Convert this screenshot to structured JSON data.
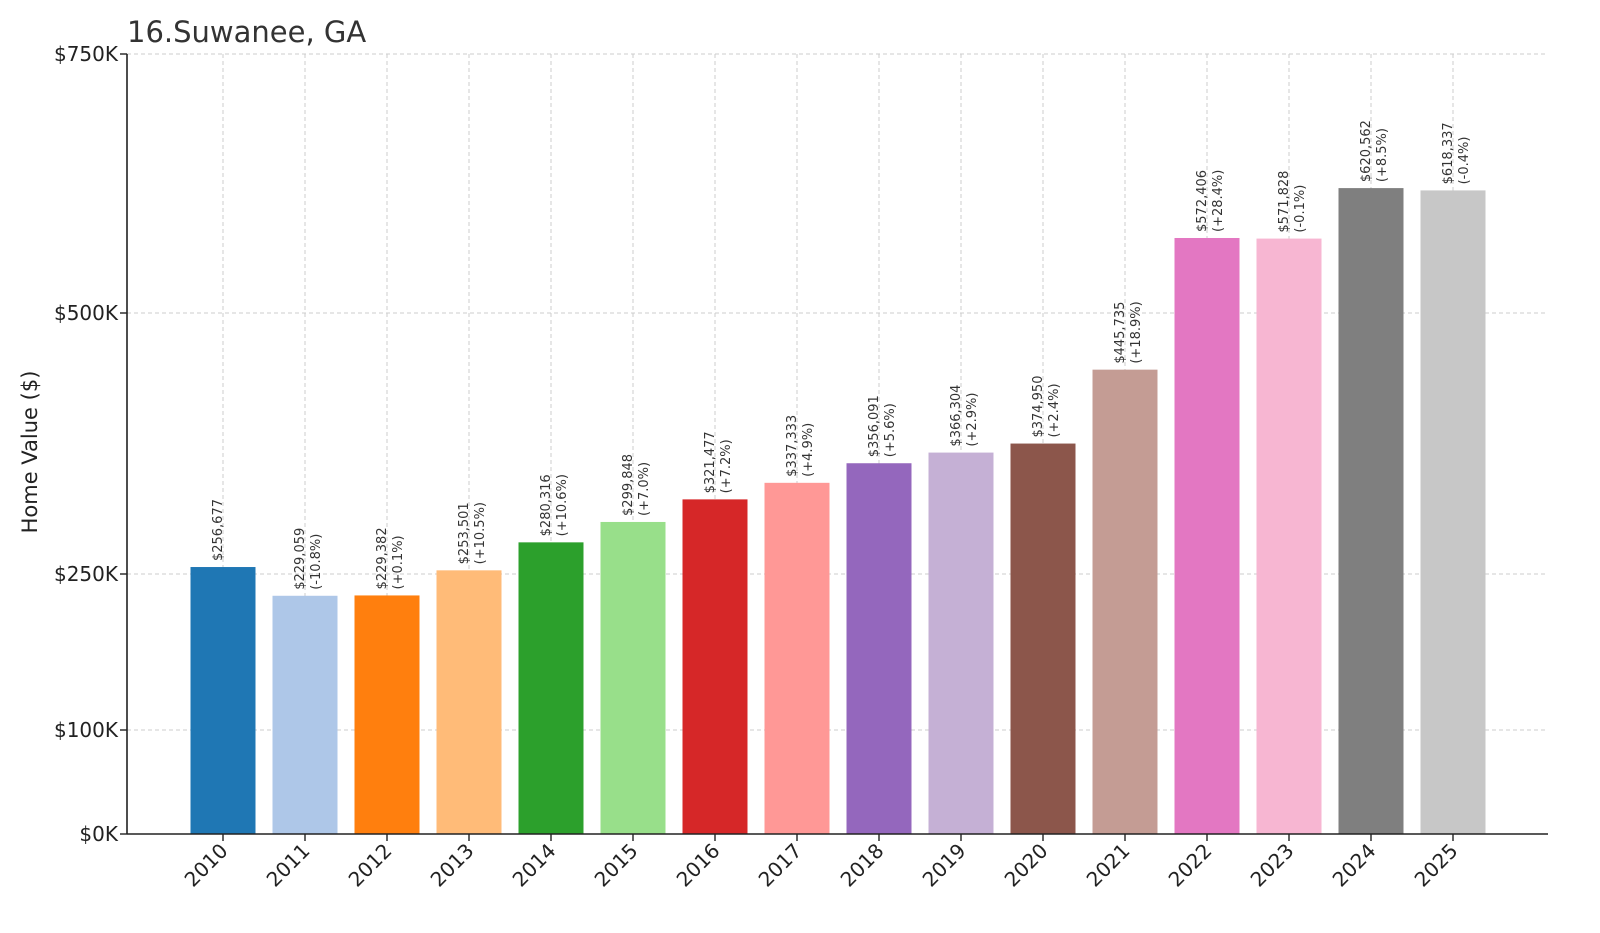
{
  "chart_data": {
    "type": "bar",
    "title": "16.Suwanee, GA",
    "xlabel": "",
    "ylabel": "Home Value ($)",
    "ylim": [
      0,
      750000
    ],
    "yticks": [
      {
        "value": 0,
        "label": "$0K"
      },
      {
        "value": 100000,
        "label": "$100K"
      },
      {
        "value": 250000,
        "label": "$250K"
      },
      {
        "value": 500000,
        "label": "$500K"
      },
      {
        "value": 750000,
        "label": "$750K"
      }
    ],
    "grid": true,
    "categories": [
      "2010",
      "2011",
      "2012",
      "2013",
      "2014",
      "2015",
      "2016",
      "2017",
      "2018",
      "2019",
      "2020",
      "2021",
      "2022",
      "2023",
      "2024",
      "2025"
    ],
    "values": [
      256677,
      229059,
      229382,
      253501,
      280316,
      299848,
      321477,
      337333,
      356091,
      366304,
      374950,
      445735,
      572406,
      571828,
      620562,
      618337
    ],
    "value_labels": [
      "$256,677",
      "$229,059",
      "$229,382",
      "$253,501",
      "$280,316",
      "$299,848",
      "$321,477",
      "$337,333",
      "$356,091",
      "$366,304",
      "$374,950",
      "$445,735",
      "$572,406",
      "$571,828",
      "$620,562",
      "$618,337"
    ],
    "change_labels": [
      "",
      "(-10.8%)",
      "(+0.1%)",
      "(+10.5%)",
      "(+10.6%)",
      "(+7.0%)",
      "(+7.2%)",
      "(+4.9%)",
      "(+5.6%)",
      "(+2.9%)",
      "(+2.4%)",
      "(+18.9%)",
      "(+28.4%)",
      "(-0.1%)",
      "(+8.5%)",
      "(-0.4%)"
    ],
    "colors": [
      "#1f77b4",
      "#aec7e8",
      "#ff7f0e",
      "#ffbb78",
      "#2ca02c",
      "#98df8a",
      "#d62728",
      "#ff9896",
      "#9467bd",
      "#c5b0d5",
      "#8c564b",
      "#c49c94",
      "#e377c2",
      "#f7b6d2",
      "#7f7f7f",
      "#c7c7c7"
    ]
  }
}
